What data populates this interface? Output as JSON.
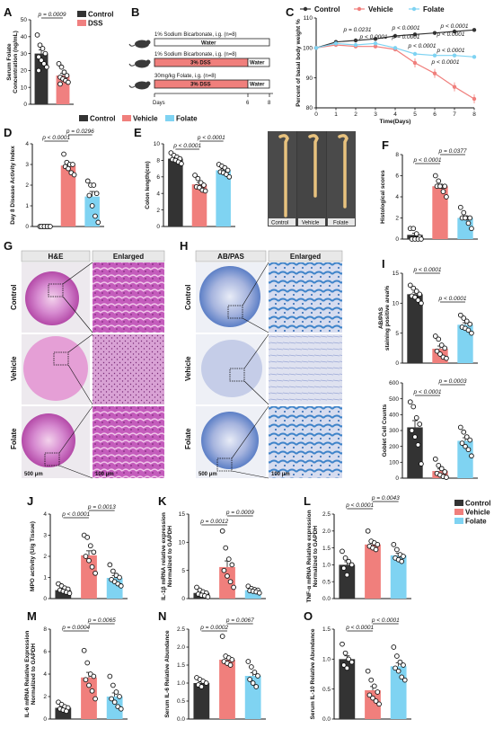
{
  "panels": {
    "A": "A",
    "B": "B",
    "C": "C",
    "D": "D",
    "E": "E",
    "F": "F",
    "G": "G",
    "H": "H",
    "I": "I",
    "J": "J",
    "K": "K",
    "L": "L",
    "M": "M",
    "N": "N",
    "O": "O"
  },
  "colors": {
    "control": "#333333",
    "vehicle": "#f07f7c",
    "folate": "#7fd3f2",
    "dss_bar": "#f08080"
  },
  "legend": {
    "control": "Control",
    "vehicle": "Vehicle",
    "folate": "Folate",
    "dss": "DSS"
  },
  "panel_a": {
    "ylabel_1": "Serum Folate",
    "ylabel_2": "Concentration (ng/mL)",
    "pval": "p = 0.0009",
    "yticks": [
      "0",
      "10",
      "20",
      "30",
      "40",
      "50"
    ]
  },
  "panel_b": {
    "row1_title": "1% Sodium Bicarbonate, i.g. (n=8)",
    "row1_bar": "Water",
    "row2_title": "1% Sodium Bicarbonate, i.g. (n=8)",
    "row2_bar": "3% DSS",
    "row2_end": "Water",
    "row3_title": "30mg/kg Folate, i.g. (n=8)",
    "row3_bar": "3% DSS",
    "row3_end": "Water",
    "days": "Days",
    "t0": "0",
    "t6": "6",
    "t8": "8"
  },
  "panel_c": {
    "ylabel": "Percent of basal body weight %",
    "xlabel": "Time(Days)",
    "yticks": [
      "80",
      "90",
      "100",
      "110"
    ],
    "xticks": [
      "0",
      "1",
      "2",
      "3",
      "4",
      "5",
      "6",
      "7",
      "8"
    ],
    "p1": "p = 0.0231",
    "p2": "p < 0.0001",
    "p3": "p < 0.0001",
    "p4": "p < 0.0001",
    "p5": "p = 0.0001",
    "p6": "p < 0.0001",
    "p7": "p < 0.0001",
    "p8": "p < 0.0001",
    "p9": "p < 0.0001"
  },
  "panel_d": {
    "ylabel": "Day 8 Disease Activity Index",
    "p1": "p < 0.0001",
    "p2": "p = 0.0296",
    "yticks": [
      "0",
      "1",
      "2",
      "3",
      "4"
    ]
  },
  "panel_e": {
    "ylabel": "Colon length(cm)",
    "p1": "p < 0.0001",
    "p2": "p < 0.0001",
    "yticks": [
      "0",
      "2",
      "4",
      "6",
      "8",
      "10"
    ],
    "photo_labels": [
      "Control",
      "Vehicle",
      "Folate"
    ]
  },
  "panel_f": {
    "ylabel": "Histological scores",
    "p1": "p < 0.0001",
    "p2": "p = 0.0377",
    "yticks": [
      "0",
      "2",
      "4",
      "6",
      "8"
    ]
  },
  "panel_g": {
    "head1": "H&E",
    "head2": "Enlarged",
    "rows": [
      "Control",
      "Vehicle",
      "Folate"
    ],
    "scale1": "500 μm",
    "scale2": "100 μm"
  },
  "panel_h": {
    "head1": "AB/PAS",
    "head2": "Enlarged",
    "rows": [
      "Control",
      "Vehicle",
      "Folate"
    ],
    "scale1": "500 μm",
    "scale2": "100 μm"
  },
  "panel_i": {
    "ylabel_top_1": "AB/PAS",
    "ylabel_top_2": "staining positive area%",
    "ylabel_bot": "Goblet Cell Counts",
    "p1": "p < 0.0001",
    "p2": "p < 0.0001",
    "p3": "p < 0.0001",
    "p4": "p = 0.0003",
    "yticks_top": [
      "0",
      "5",
      "10",
      "15"
    ],
    "yticks_bot": [
      "0",
      "100",
      "200",
      "300",
      "400",
      "500",
      "600"
    ]
  },
  "panel_j": {
    "ylabel": "MPO activity (U/g Tissue)",
    "p1": "p < 0.0001",
    "p2": "p = 0.0013",
    "yticks": [
      "0",
      "1",
      "2",
      "3",
      "4"
    ]
  },
  "panel_k": {
    "ylabel_1": "IL-1β mRNA relative expression",
    "ylabel_2": "Normalized to GAPDH",
    "p1": "p = 0.0012",
    "p2": "p = 0.0009",
    "yticks": [
      "0",
      "5",
      "10",
      "15"
    ]
  },
  "panel_l": {
    "ylabel_1": "TNF-α mRNA Relative expression",
    "ylabel_2": "Normalized to GAPDH",
    "p1": "p < 0.0001",
    "p2": "p = 0.0043",
    "yticks": [
      "0.0",
      "0.5",
      "1.0",
      "1.5",
      "2.0",
      "2.5"
    ]
  },
  "panel_m": {
    "ylabel_1": "IL-6 mRNA Relative Expression",
    "ylabel_2": "Normalized to GAPDH",
    "p1": "p = 0.0004",
    "p2": "p = 0.0065",
    "yticks": [
      "0",
      "2",
      "4",
      "6",
      "8"
    ]
  },
  "panel_n": {
    "ylabel": "Serum IL-6 Relative Abundance",
    "p1": "p = 0.0002",
    "p2": "p = 0.0067",
    "yticks": [
      "0.0",
      "0.5",
      "1.0",
      "1.5",
      "2.0",
      "2.5"
    ]
  },
  "panel_o": {
    "ylabel": "Serum IL-10 Relative Abundance",
    "p1": "p < 0.0001",
    "p2": "p < 0.0001",
    "yticks": [
      "0.0",
      "0.5",
      "1.0",
      "1.5"
    ]
  },
  "chart_data": [
    {
      "type": "bar",
      "panel": "A",
      "categories": [
        "Control",
        "DSS"
      ],
      "values": [
        30,
        17
      ],
      "ylim": [
        0,
        50
      ],
      "points": [
        [
          41,
          35,
          33,
          30,
          28,
          26,
          24,
          22,
          20
        ],
        [
          24,
          22,
          19,
          17,
          16,
          15,
          14,
          13,
          12
        ]
      ]
    },
    {
      "type": "line",
      "panel": "C",
      "x": [
        0,
        1,
        2,
        3,
        4,
        5,
        6,
        7,
        8
      ],
      "ylim": [
        80,
        110
      ],
      "series": [
        {
          "name": "Control",
          "values": [
            100,
            102,
            102.5,
            103,
            104,
            104.5,
            105,
            105.5,
            106
          ]
        },
        {
          "name": "Vehicle",
          "values": [
            100,
            101,
            100.5,
            100.5,
            99.5,
            95,
            91.5,
            87,
            83
          ]
        },
        {
          "name": "Folate",
          "values": [
            100,
            101.5,
            101,
            101.5,
            100,
            98,
            97.5,
            97.5,
            97
          ]
        }
      ]
    },
    {
      "type": "bar",
      "panel": "D",
      "categories": [
        "Control",
        "Vehicle",
        "Folate"
      ],
      "values": [
        0,
        2.95,
        1.45
      ],
      "ylim": [
        0,
        4
      ],
      "points": [
        [
          0,
          0,
          0,
          0,
          0,
          0,
          0,
          0
        ],
        [
          3.5,
          3.1,
          3,
          3,
          2.9,
          2.8,
          2.6,
          2.5
        ],
        [
          2.2,
          2,
          2,
          1.6,
          1.5,
          1,
          0.5,
          0.2
        ]
      ]
    },
    {
      "type": "bar",
      "panel": "E",
      "categories": [
        "Control",
        "Vehicle",
        "Folate"
      ],
      "values": [
        8.2,
        5.1,
        6.8
      ],
      "ylim": [
        0,
        10
      ],
      "points": [
        [
          8.9,
          8.6,
          8.4,
          8.2,
          8.1,
          8,
          7.8,
          7.6
        ],
        [
          6.2,
          5.8,
          5.3,
          5,
          4.8,
          4.7,
          4.4,
          4.3
        ],
        [
          7.5,
          7.3,
          7.1,
          6.8,
          6.6,
          6.5,
          6.3,
          6
        ]
      ]
    },
    {
      "type": "bar",
      "panel": "F",
      "categories": [
        "Control",
        "Vehicle",
        "Folate"
      ],
      "values": [
        0.4,
        5,
        2
      ],
      "ylim": [
        0,
        8
      ],
      "points": [
        [
          1,
          1,
          0.5,
          0.2,
          0,
          0,
          0,
          0
        ],
        [
          6,
          5.5,
          5,
          5,
          5,
          5,
          4.5,
          4
        ],
        [
          3,
          2.5,
          2,
          2,
          2,
          2,
          1.5,
          1
        ]
      ]
    },
    {
      "type": "bar",
      "panel": "I-top",
      "categories": [
        "Control",
        "Vehicle",
        "Folate"
      ],
      "values": [
        11.5,
        2.4,
        6.4
      ],
      "ylim": [
        0,
        15
      ],
      "points": [
        [
          13,
          12.5,
          12,
          11.5,
          11.2,
          11,
          10.5,
          10
        ],
        [
          4.5,
          4,
          3,
          2.5,
          2,
          1.5,
          1,
          0.8
        ],
        [
          8,
          7.5,
          7,
          6.5,
          6,
          5.8,
          5.5,
          5
        ]
      ]
    },
    {
      "type": "bar",
      "panel": "I-bot",
      "categories": [
        "Control",
        "Vehicle",
        "Folate"
      ],
      "values": [
        320,
        45,
        235
      ],
      "ylim": [
        0,
        600
      ],
      "points": [
        [
          480,
          450,
          380,
          340,
          300,
          260,
          210,
          90
        ],
        [
          120,
          80,
          60,
          40,
          30,
          20,
          10,
          5
        ],
        [
          320,
          290,
          260,
          240,
          220,
          200,
          180,
          140
        ]
      ]
    },
    {
      "type": "bar",
      "panel": "J",
      "categories": [
        "Control",
        "Vehicle",
        "Folate"
      ],
      "values": [
        0.4,
        2.05,
        0.98
      ],
      "ylim": [
        0,
        4
      ],
      "points": [
        [
          0.7,
          0.6,
          0.5,
          0.45,
          0.4,
          0.35,
          0.3,
          0.25
        ],
        [
          3,
          2.9,
          2.5,
          2.2,
          2,
          1.8,
          1.5,
          1.2
        ],
        [
          1.6,
          1.3,
          1.1,
          1,
          0.9,
          0.8,
          0.7,
          0.6
        ]
      ]
    },
    {
      "type": "bar",
      "panel": "K",
      "categories": [
        "Control",
        "Vehicle",
        "Folate"
      ],
      "values": [
        1,
        5.6,
        1.5
      ],
      "ylim": [
        0,
        15
      ],
      "points": [
        [
          2,
          1.5,
          1.2,
          1,
          0.8,
          0.6,
          0.5,
          0.3
        ],
        [
          12,
          9,
          7,
          6,
          5,
          4,
          3,
          2
        ],
        [
          2.2,
          1.8,
          1.6,
          1.5,
          1.4,
          1.3,
          1.2,
          1
        ]
      ]
    },
    {
      "type": "bar",
      "panel": "L",
      "categories": [
        "Control",
        "Vehicle",
        "Folate"
      ],
      "values": [
        1,
        1.6,
        1.28
      ],
      "ylim": [
        0,
        2.5
      ],
      "points": [
        [
          1.4,
          1.2,
          1.1,
          1,
          0.9,
          0.7
        ],
        [
          2,
          1.7,
          1.65,
          1.6,
          1.55,
          1.5,
          1.45
        ],
        [
          1.6,
          1.45,
          1.3,
          1.25,
          1.2,
          1.15,
          1.1
        ]
      ]
    },
    {
      "type": "bar",
      "panel": "M",
      "categories": [
        "Control",
        "Vehicle",
        "Folate"
      ],
      "values": [
        1,
        3.7,
        2
      ],
      "ylim": [
        0,
        8
      ],
      "points": [
        [
          1.5,
          1.3,
          1.1,
          1,
          0.9,
          0.8,
          0.7
        ],
        [
          6.1,
          5,
          4,
          3.8,
          3.5,
          3,
          2.5,
          1.8
        ],
        [
          3.8,
          3,
          2.4,
          2,
          1.8,
          1.5,
          1.1,
          0.9
        ]
      ]
    },
    {
      "type": "bar",
      "panel": "N",
      "categories": [
        "Control",
        "Vehicle",
        "Folate"
      ],
      "values": [
        1,
        1.65,
        1.2
      ],
      "ylim": [
        0,
        2.5
      ],
      "points": [
        [
          1.15,
          1.1,
          1.05,
          1,
          0.95,
          0.9
        ],
        [
          2.3,
          1.75,
          1.7,
          1.65,
          1.6,
          1.55,
          1.5
        ],
        [
          1.6,
          1.45,
          1.3,
          1.2,
          1.1,
          1,
          0.9
        ]
      ]
    },
    {
      "type": "bar",
      "panel": "O",
      "categories": [
        "Control",
        "Vehicle",
        "Folate"
      ],
      "values": [
        1,
        0.48,
        0.88
      ],
      "ylim": [
        0,
        1.5
      ],
      "points": [
        [
          1.25,
          1.1,
          1,
          0.95,
          0.9,
          0.85
        ],
        [
          0.8,
          0.65,
          0.55,
          0.45,
          0.4,
          0.35,
          0.3,
          0.25
        ],
        [
          1.2,
          1.05,
          0.95,
          0.9,
          0.85,
          0.8,
          0.7,
          0.65
        ]
      ]
    }
  ]
}
